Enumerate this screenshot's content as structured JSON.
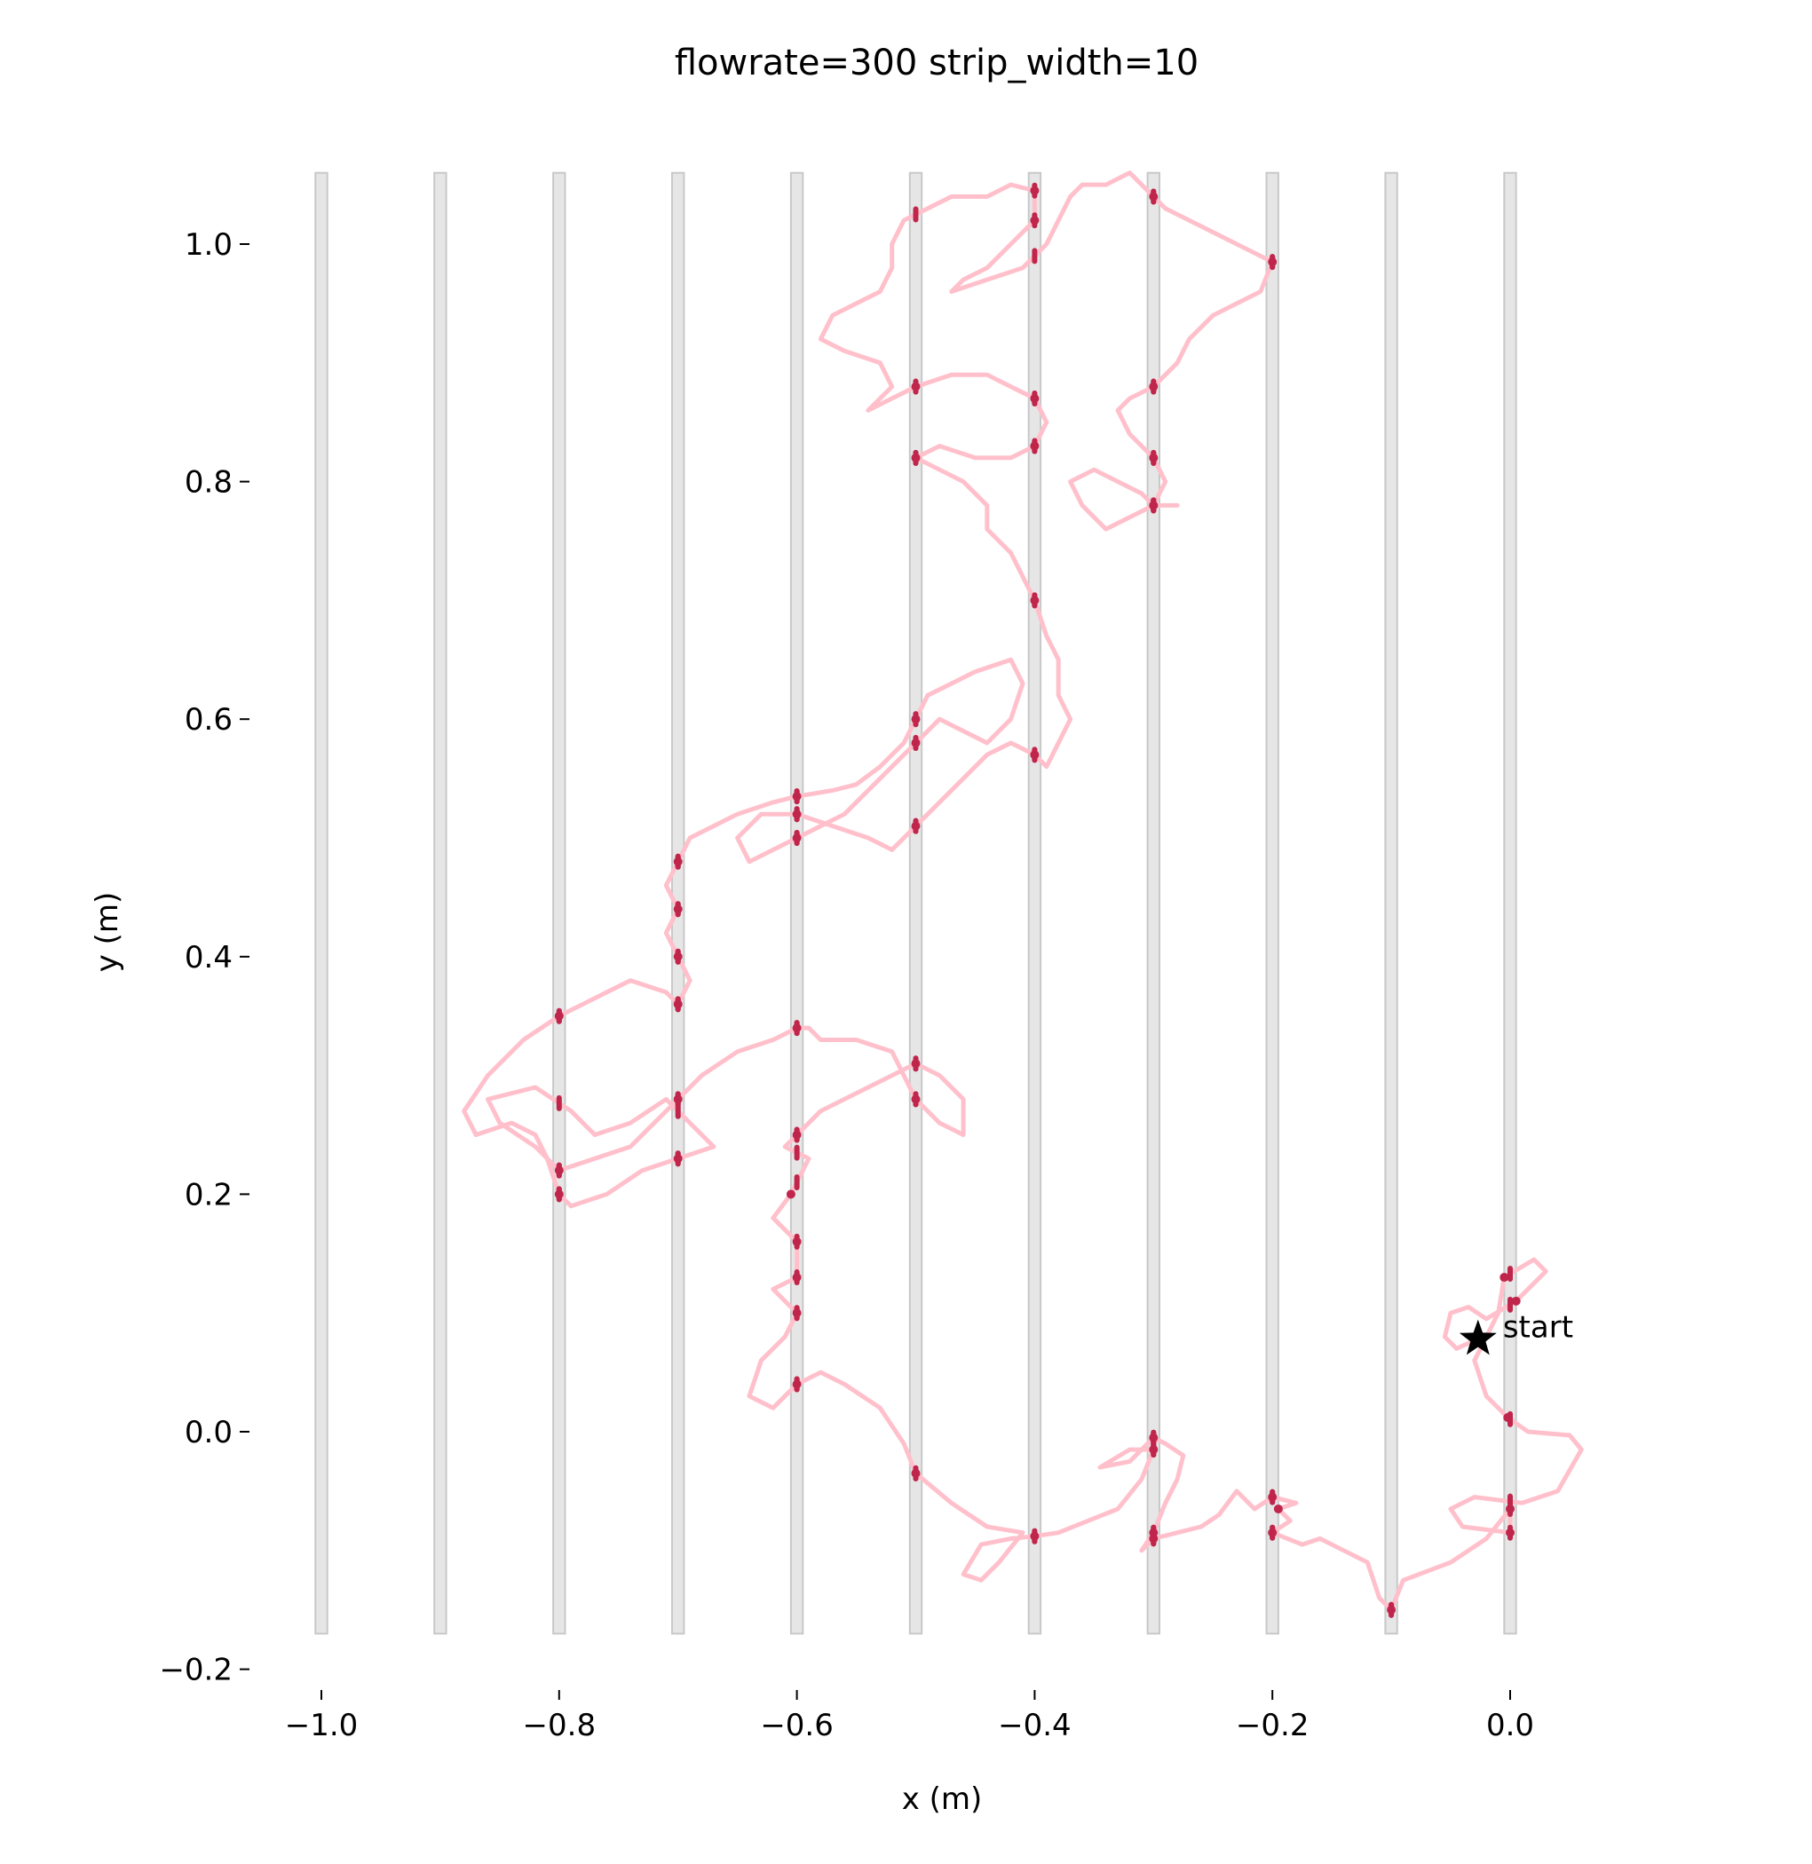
{
  "chart_data": {
    "type": "line",
    "title": "flowrate=300 strip_width=10",
    "xlabel": "x (m)",
    "ylabel": "y (m)",
    "xlim": [
      -1.07,
      0.07
    ],
    "ylim": [
      -0.2,
      1.06
    ],
    "xticks": [
      -1.0,
      -0.8,
      -0.6,
      -0.4,
      -0.2,
      0.0
    ],
    "yticks": [
      -0.2,
      0.0,
      0.2,
      0.4,
      0.6,
      0.8,
      1.0
    ],
    "xtick_labels": [
      "−1.0",
      "−0.8",
      "−0.6",
      "−0.4",
      "−0.2",
      "0.0"
    ],
    "ytick_labels": [
      "−0.2",
      "0.0",
      "0.2",
      "0.4",
      "0.6",
      "0.8",
      "1.0"
    ],
    "grid": false,
    "strips": {
      "x_centers": [
        -1.0,
        -0.9,
        -0.8,
        -0.7,
        -0.6,
        -0.5,
        -0.4,
        -0.3,
        -0.2,
        -0.1,
        0.0
      ],
      "y_range": [
        -0.17,
        1.06
      ],
      "color": "#e6e6e6"
    },
    "trajectory_color": "#ffc0cb",
    "in_strip_color": "#c0264b",
    "start": {
      "x": -0.027,
      "y": 0.078,
      "label": "start"
    },
    "trajectory": [
      [
        -0.027,
        0.078
      ],
      [
        -0.045,
        0.07
      ],
      [
        -0.055,
        0.08
      ],
      [
        -0.05,
        0.1
      ],
      [
        -0.035,
        0.105
      ],
      [
        -0.02,
        0.095
      ],
      [
        0.005,
        0.11
      ],
      [
        0.03,
        0.135
      ],
      [
        0.02,
        0.145
      ],
      [
        -0.005,
        0.13
      ],
      [
        -0.01,
        0.1
      ],
      [
        -0.03,
        0.06
      ],
      [
        -0.02,
        0.03
      ],
      [
        -0.002,
        0.012
      ],
      [
        0.015,
        0.0
      ],
      [
        0.05,
        -0.003
      ],
      [
        0.06,
        -0.015
      ],
      [
        0.04,
        -0.05
      ],
      [
        0.01,
        -0.06
      ],
      [
        -0.03,
        -0.055
      ],
      [
        -0.05,
        -0.065
      ],
      [
        -0.04,
        -0.08
      ],
      [
        0.0,
        -0.085
      ],
      [
        0.0,
        -0.065
      ],
      [
        -0.02,
        -0.09
      ],
      [
        -0.05,
        -0.11
      ],
      [
        -0.09,
        -0.125
      ],
      [
        -0.1,
        -0.15
      ],
      [
        -0.11,
        -0.14
      ],
      [
        -0.12,
        -0.11
      ],
      [
        -0.14,
        -0.1
      ],
      [
        -0.16,
        -0.09
      ],
      [
        -0.175,
        -0.095
      ],
      [
        -0.2,
        -0.085
      ],
      [
        -0.185,
        -0.075
      ],
      [
        -0.195,
        -0.065
      ],
      [
        -0.18,
        -0.06
      ],
      [
        -0.2,
        -0.055
      ],
      [
        -0.215,
        -0.065
      ],
      [
        -0.23,
        -0.05
      ],
      [
        -0.245,
        -0.07
      ],
      [
        -0.26,
        -0.08
      ],
      [
        -0.28,
        -0.085
      ],
      [
        -0.3,
        -0.09
      ],
      [
        -0.31,
        -0.1
      ],
      [
        -0.3,
        -0.085
      ],
      [
        -0.29,
        -0.06
      ],
      [
        -0.28,
        -0.04
      ],
      [
        -0.275,
        -0.02
      ],
      [
        -0.29,
        -0.01
      ],
      [
        -0.3,
        -0.005
      ],
      [
        -0.32,
        -0.025
      ],
      [
        -0.345,
        -0.03
      ],
      [
        -0.32,
        -0.015
      ],
      [
        -0.3,
        -0.015
      ],
      [
        -0.31,
        -0.04
      ],
      [
        -0.33,
        -0.065
      ],
      [
        -0.355,
        -0.075
      ],
      [
        -0.38,
        -0.085
      ],
      [
        -0.4,
        -0.088
      ],
      [
        -0.42,
        -0.09
      ],
      [
        -0.445,
        -0.095
      ],
      [
        -0.46,
        -0.12
      ],
      [
        -0.445,
        -0.125
      ],
      [
        -0.43,
        -0.11
      ],
      [
        -0.41,
        -0.085
      ],
      [
        -0.44,
        -0.08
      ],
      [
        -0.47,
        -0.06
      ],
      [
        -0.5,
        -0.035
      ],
      [
        -0.51,
        -0.01
      ],
      [
        -0.53,
        0.02
      ],
      [
        -0.56,
        0.04
      ],
      [
        -0.58,
        0.05
      ],
      [
        -0.6,
        0.04
      ],
      [
        -0.62,
        0.02
      ],
      [
        -0.64,
        0.03
      ],
      [
        -0.63,
        0.06
      ],
      [
        -0.61,
        0.08
      ],
      [
        -0.6,
        0.1
      ],
      [
        -0.62,
        0.12
      ],
      [
        -0.6,
        0.13
      ],
      [
        -0.6,
        0.16
      ],
      [
        -0.62,
        0.18
      ],
      [
        -0.605,
        0.2
      ],
      [
        -0.59,
        0.23
      ],
      [
        -0.61,
        0.24
      ],
      [
        -0.6,
        0.25
      ],
      [
        -0.58,
        0.27
      ],
      [
        -0.54,
        0.29
      ],
      [
        -0.52,
        0.3
      ],
      [
        -0.5,
        0.31
      ],
      [
        -0.48,
        0.3
      ],
      [
        -0.46,
        0.28
      ],
      [
        -0.46,
        0.25
      ],
      [
        -0.48,
        0.26
      ],
      [
        -0.5,
        0.28
      ],
      [
        -0.51,
        0.3
      ],
      [
        -0.52,
        0.32
      ],
      [
        -0.55,
        0.33
      ],
      [
        -0.58,
        0.33
      ],
      [
        -0.59,
        0.34
      ],
      [
        -0.6,
        0.34
      ],
      [
        -0.62,
        0.33
      ],
      [
        -0.65,
        0.32
      ],
      [
        -0.68,
        0.3
      ],
      [
        -0.7,
        0.28
      ],
      [
        -0.72,
        0.26
      ],
      [
        -0.74,
        0.24
      ],
      [
        -0.77,
        0.23
      ],
      [
        -0.8,
        0.22
      ],
      [
        -0.82,
        0.24
      ],
      [
        -0.85,
        0.26
      ],
      [
        -0.86,
        0.28
      ],
      [
        -0.82,
        0.29
      ],
      [
        -0.79,
        0.27
      ],
      [
        -0.77,
        0.25
      ],
      [
        -0.74,
        0.26
      ],
      [
        -0.71,
        0.28
      ],
      [
        -0.69,
        0.26
      ],
      [
        -0.67,
        0.24
      ],
      [
        -0.7,
        0.23
      ],
      [
        -0.73,
        0.22
      ],
      [
        -0.76,
        0.2
      ],
      [
        -0.79,
        0.19
      ],
      [
        -0.8,
        0.2
      ],
      [
        -0.81,
        0.23
      ],
      [
        -0.82,
        0.25
      ],
      [
        -0.84,
        0.26
      ],
      [
        -0.87,
        0.25
      ],
      [
        -0.88,
        0.27
      ],
      [
        -0.86,
        0.3
      ],
      [
        -0.83,
        0.33
      ],
      [
        -0.8,
        0.35
      ],
      [
        -0.78,
        0.36
      ],
      [
        -0.76,
        0.37
      ],
      [
        -0.74,
        0.38
      ],
      [
        -0.71,
        0.37
      ],
      [
        -0.7,
        0.36
      ],
      [
        -0.69,
        0.38
      ],
      [
        -0.7,
        0.4
      ],
      [
        -0.71,
        0.42
      ],
      [
        -0.7,
        0.44
      ],
      [
        -0.71,
        0.46
      ],
      [
        -0.7,
        0.48
      ],
      [
        -0.69,
        0.5
      ],
      [
        -0.67,
        0.51
      ],
      [
        -0.65,
        0.52
      ],
      [
        -0.62,
        0.53
      ],
      [
        -0.6,
        0.535
      ],
      [
        -0.57,
        0.54
      ],
      [
        -0.55,
        0.545
      ],
      [
        -0.53,
        0.56
      ],
      [
        -0.51,
        0.58
      ],
      [
        -0.5,
        0.6
      ],
      [
        -0.49,
        0.62
      ],
      [
        -0.47,
        0.63
      ],
      [
        -0.45,
        0.64
      ],
      [
        -0.42,
        0.65
      ],
      [
        -0.41,
        0.63
      ],
      [
        -0.42,
        0.6
      ],
      [
        -0.44,
        0.58
      ],
      [
        -0.46,
        0.59
      ],
      [
        -0.48,
        0.6
      ],
      [
        -0.5,
        0.58
      ],
      [
        -0.52,
        0.56
      ],
      [
        -0.54,
        0.54
      ],
      [
        -0.56,
        0.52
      ],
      [
        -0.58,
        0.51
      ],
      [
        -0.6,
        0.5
      ],
      [
        -0.62,
        0.49
      ],
      [
        -0.64,
        0.48
      ],
      [
        -0.65,
        0.5
      ],
      [
        -0.63,
        0.52
      ],
      [
        -0.6,
        0.52
      ],
      [
        -0.57,
        0.51
      ],
      [
        -0.54,
        0.5
      ],
      [
        -0.52,
        0.49
      ],
      [
        -0.5,
        0.51
      ],
      [
        -0.48,
        0.53
      ],
      [
        -0.46,
        0.55
      ],
      [
        -0.44,
        0.57
      ],
      [
        -0.42,
        0.58
      ],
      [
        -0.4,
        0.57
      ],
      [
        -0.39,
        0.56
      ],
      [
        -0.38,
        0.58
      ],
      [
        -0.37,
        0.6
      ],
      [
        -0.38,
        0.62
      ],
      [
        -0.38,
        0.65
      ],
      [
        -0.39,
        0.67
      ],
      [
        -0.4,
        0.7
      ],
      [
        -0.41,
        0.72
      ],
      [
        -0.42,
        0.74
      ],
      [
        -0.44,
        0.76
      ],
      [
        -0.44,
        0.78
      ],
      [
        -0.46,
        0.8
      ],
      [
        -0.48,
        0.81
      ],
      [
        -0.5,
        0.82
      ],
      [
        -0.48,
        0.83
      ],
      [
        -0.45,
        0.82
      ],
      [
        -0.42,
        0.82
      ],
      [
        -0.4,
        0.83
      ],
      [
        -0.39,
        0.85
      ],
      [
        -0.4,
        0.87
      ],
      [
        -0.42,
        0.88
      ],
      [
        -0.44,
        0.89
      ],
      [
        -0.47,
        0.89
      ],
      [
        -0.5,
        0.88
      ],
      [
        -0.52,
        0.87
      ],
      [
        -0.54,
        0.86
      ],
      [
        -0.52,
        0.88
      ],
      [
        -0.53,
        0.9
      ],
      [
        -0.56,
        0.91
      ],
      [
        -0.58,
        0.92
      ],
      [
        -0.57,
        0.94
      ],
      [
        -0.55,
        0.95
      ],
      [
        -0.53,
        0.96
      ],
      [
        -0.52,
        0.98
      ],
      [
        -0.52,
        1.0
      ],
      [
        -0.51,
        1.02
      ],
      [
        -0.49,
        1.03
      ],
      [
        -0.47,
        1.04
      ],
      [
        -0.44,
        1.04
      ],
      [
        -0.42,
        1.05
      ],
      [
        -0.4,
        1.045
      ],
      [
        -0.4,
        1.02
      ],
      [
        -0.42,
        1.0
      ],
      [
        -0.44,
        0.98
      ],
      [
        -0.46,
        0.97
      ],
      [
        -0.47,
        0.96
      ],
      [
        -0.44,
        0.97
      ],
      [
        -0.41,
        0.98
      ],
      [
        -0.39,
        1.0
      ],
      [
        -0.38,
        1.02
      ],
      [
        -0.37,
        1.04
      ],
      [
        -0.36,
        1.05
      ],
      [
        -0.34,
        1.05
      ],
      [
        -0.32,
        1.06
      ],
      [
        -0.3,
        1.04
      ],
      [
        -0.29,
        1.03
      ],
      [
        -0.27,
        1.02
      ],
      [
        -0.25,
        1.01
      ],
      [
        -0.23,
        1.0
      ],
      [
        -0.21,
        0.99
      ],
      [
        -0.2,
        0.985
      ],
      [
        -0.21,
        0.96
      ],
      [
        -0.23,
        0.95
      ],
      [
        -0.25,
        0.94
      ],
      [
        -0.27,
        0.92
      ],
      [
        -0.28,
        0.9
      ],
      [
        -0.3,
        0.88
      ],
      [
        -0.32,
        0.87
      ],
      [
        -0.33,
        0.86
      ],
      [
        -0.32,
        0.84
      ],
      [
        -0.3,
        0.82
      ],
      [
        -0.29,
        0.8
      ],
      [
        -0.3,
        0.78
      ],
      [
        -0.32,
        0.77
      ],
      [
        -0.34,
        0.76
      ],
      [
        -0.36,
        0.78
      ],
      [
        -0.37,
        0.8
      ],
      [
        -0.35,
        0.81
      ],
      [
        -0.33,
        0.8
      ],
      [
        -0.31,
        0.79
      ],
      [
        -0.3,
        0.78
      ],
      [
        -0.28,
        0.78
      ]
    ]
  }
}
